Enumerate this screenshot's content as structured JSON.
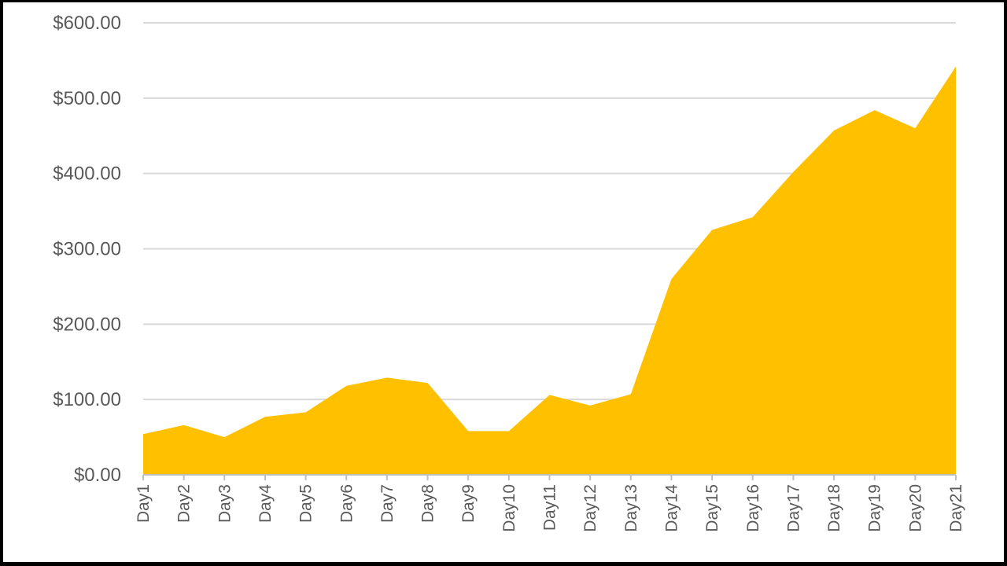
{
  "chart_data": {
    "type": "area",
    "title": "",
    "xlabel": "",
    "ylabel": "",
    "ylim": [
      0,
      600
    ],
    "yticks": [
      0,
      100,
      200,
      300,
      400,
      500,
      600
    ],
    "ytick_labels": [
      "$0.00",
      "$100.00",
      "$200.00",
      "$300.00",
      "$400.00",
      "$500.00",
      "$600.00"
    ],
    "grid": true,
    "legend": "none",
    "categories": [
      "Day1",
      "Day2",
      "Day3",
      "Day4",
      "Day5",
      "Day6",
      "Day7",
      "Day8",
      "Day9",
      "Day10",
      "Day11",
      "Day12",
      "Day13",
      "Day14",
      "Day15",
      "Day16",
      "Day17",
      "Day18",
      "Day19",
      "Day20",
      "Day21"
    ],
    "series": [
      {
        "values": [
          54,
          66,
          50,
          77,
          83,
          118,
          129,
          122,
          58,
          58,
          106,
          92,
          107,
          260,
          325,
          342,
          402,
          457,
          484,
          460,
          542
        ],
        "color": "#FFC000"
      }
    ],
    "colors": {
      "gridline": "#D9D9D9",
      "axis": "#BFBFBF",
      "text": "#595959"
    }
  }
}
